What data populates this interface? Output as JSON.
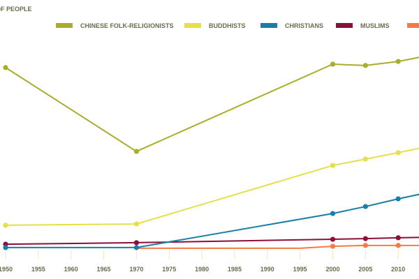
{
  "chart_data": {
    "type": "line",
    "title": "OF PEOPLE",
    "xlabel": "",
    "ylabel": "",
    "x": [
      1950,
      1970,
      1995,
      2000,
      2005,
      2010,
      2015
    ],
    "x_ticks": [
      "1950",
      "1955",
      "1960",
      "1965",
      "1970",
      "1975",
      "1980",
      "1985",
      "1990",
      "1995",
      "2000",
      "2005",
      "2010"
    ],
    "xlim": [
      1950,
      2015
    ],
    "ylim": [
      0,
      100
    ],
    "y_units": "relative (no y-axis labels shown)",
    "grid": false,
    "legend_position": "top",
    "series": [
      {
        "name": "CHINESE FOLK-RELIGIONISTS",
        "color": "#a9ad2b",
        "points": [
          [
            1950,
            87.9
          ],
          [
            1970,
            48.5
          ],
          [
            2000,
            89.5
          ],
          [
            2005,
            88.9
          ],
          [
            2010,
            90.8
          ],
          [
            2015,
            93.8
          ]
        ],
        "markers": [
          1950,
          1970,
          2000,
          2005,
          2010
        ]
      },
      {
        "name": "BUDDHISTS",
        "color": "#e5e04a",
        "points": [
          [
            1950,
            13.8
          ],
          [
            1970,
            14.4
          ],
          [
            2000,
            41.9
          ],
          [
            2005,
            44.9
          ],
          [
            2010,
            47.9
          ],
          [
            2015,
            51.1
          ]
        ],
        "markers": [
          1950,
          1970,
          2000,
          2005,
          2010
        ]
      },
      {
        "name": "CHRISTIANS",
        "color": "#1a7fa8",
        "points": [
          [
            1950,
            3.3
          ],
          [
            1970,
            3.3
          ],
          [
            2000,
            19.3
          ],
          [
            2005,
            22.6
          ],
          [
            2010,
            26.2
          ],
          [
            2015,
            29.5
          ]
        ],
        "markers": [
          1950,
          1970,
          2000,
          2005,
          2010
        ]
      },
      {
        "name": "MUSLIMS",
        "color": "#8b0f3a",
        "points": [
          [
            1950,
            4.9
          ],
          [
            1970,
            5.6
          ],
          [
            2000,
            7.2
          ],
          [
            2005,
            7.5
          ],
          [
            2010,
            7.9
          ],
          [
            2015,
            8.2
          ]
        ],
        "markers": [
          1950,
          1970,
          2000,
          2005,
          2010
        ]
      },
      {
        "name": "",
        "color": "#f57a45",
        "points": [
          [
            1970,
            3.0
          ],
          [
            1995,
            3.0
          ],
          [
            2000,
            3.9
          ],
          [
            2005,
            4.3
          ],
          [
            2010,
            4.3
          ],
          [
            2015,
            4.3
          ]
        ],
        "markers": [
          2000,
          2005,
          2010
        ]
      }
    ]
  }
}
